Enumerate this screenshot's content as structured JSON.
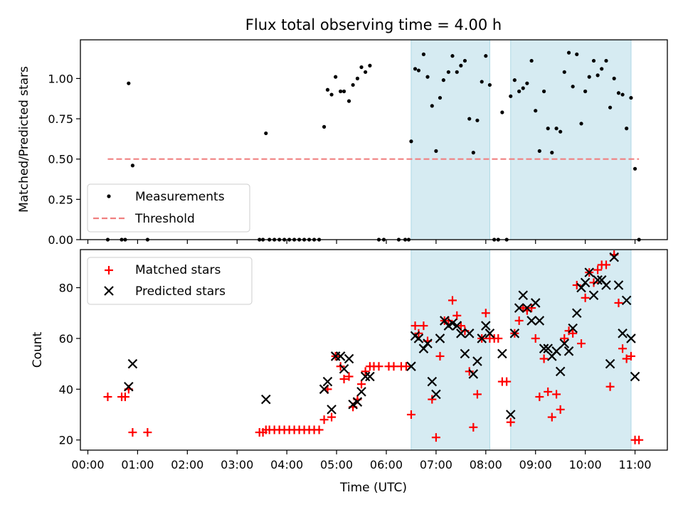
{
  "chart_data": [
    {
      "type": "scatter",
      "title": "Flux total observing time = 4.00 h",
      "xlabel": "",
      "ylabel": "Matched/Predicted stars",
      "xlim": [
        -0.15,
        11.65
      ],
      "ylim": [
        0,
        1.24
      ],
      "yticks": [
        0.0,
        0.25,
        0.5,
        0.75,
        1.0
      ],
      "ytick_labels": [
        "0.00",
        "0.25",
        "0.50",
        "0.75",
        "1.00"
      ],
      "shaded_intervals": [
        [
          6.5,
          8.08
        ],
        [
          8.5,
          10.92
        ]
      ],
      "legend_position": "lower-left",
      "series": [
        {
          "name": "Measurements",
          "marker": "dot",
          "color": "#000000",
          "points": [
            [
              0.4,
              0.0
            ],
            [
              0.68,
              0.0
            ],
            [
              0.75,
              0.0
            ],
            [
              0.82,
              0.97
            ],
            [
              0.9,
              0.46
            ],
            [
              1.2,
              0.0
            ],
            [
              3.45,
              0.0
            ],
            [
              3.52,
              0.0
            ],
            [
              3.58,
              0.66
            ],
            [
              3.65,
              0.0
            ],
            [
              3.75,
              0.0
            ],
            [
              3.85,
              0.0
            ],
            [
              3.95,
              0.0
            ],
            [
              4.05,
              0.0
            ],
            [
              4.15,
              0.0
            ],
            [
              4.25,
              0.0
            ],
            [
              4.35,
              0.0
            ],
            [
              4.45,
              0.0
            ],
            [
              4.55,
              0.0
            ],
            [
              4.65,
              0.0
            ],
            [
              4.75,
              0.7
            ],
            [
              4.82,
              0.93
            ],
            [
              4.9,
              0.9
            ],
            [
              4.98,
              1.01
            ],
            [
              5.08,
              0.92
            ],
            [
              5.15,
              0.92
            ],
            [
              5.25,
              0.86
            ],
            [
              5.33,
              0.96
            ],
            [
              5.42,
              1.0
            ],
            [
              5.5,
              1.07
            ],
            [
              5.58,
              1.04
            ],
            [
              5.67,
              1.08
            ],
            [
              5.85,
              0.0
            ],
            [
              5.95,
              0.0
            ],
            [
              6.25,
              0.0
            ],
            [
              6.38,
              0.0
            ],
            [
              6.45,
              0.0
            ],
            [
              6.5,
              0.61
            ],
            [
              6.58,
              1.06
            ],
            [
              6.65,
              1.05
            ],
            [
              6.75,
              1.15
            ],
            [
              6.83,
              1.01
            ],
            [
              6.92,
              0.83
            ],
            [
              7.0,
              0.55
            ],
            [
              7.08,
              0.88
            ],
            [
              7.15,
              0.99
            ],
            [
              7.25,
              1.04
            ],
            [
              7.33,
              1.14
            ],
            [
              7.42,
              1.04
            ],
            [
              7.5,
              1.08
            ],
            [
              7.58,
              1.11
            ],
            [
              7.67,
              0.75
            ],
            [
              7.75,
              0.54
            ],
            [
              7.83,
              0.74
            ],
            [
              7.92,
              0.98
            ],
            [
              8.0,
              1.14
            ],
            [
              8.08,
              0.96
            ],
            [
              8.17,
              0.0
            ],
            [
              8.25,
              0.0
            ],
            [
              8.33,
              0.79
            ],
            [
              8.42,
              0.0
            ],
            [
              8.5,
              0.89
            ],
            [
              8.58,
              0.99
            ],
            [
              8.67,
              0.92
            ],
            [
              8.75,
              0.94
            ],
            [
              8.83,
              0.97
            ],
            [
              8.92,
              1.11
            ],
            [
              9.0,
              0.8
            ],
            [
              9.08,
              0.55
            ],
            [
              9.17,
              0.92
            ],
            [
              9.25,
              0.69
            ],
            [
              9.33,
              0.54
            ],
            [
              9.42,
              0.69
            ],
            [
              9.5,
              0.67
            ],
            [
              9.58,
              1.04
            ],
            [
              9.67,
              1.16
            ],
            [
              9.75,
              0.95
            ],
            [
              9.83,
              1.15
            ],
            [
              9.92,
              0.72
            ],
            [
              10.0,
              0.92
            ],
            [
              10.08,
              1.01
            ],
            [
              10.17,
              1.11
            ],
            [
              10.25,
              1.02
            ],
            [
              10.33,
              1.06
            ],
            [
              10.42,
              1.11
            ],
            [
              10.5,
              0.82
            ],
            [
              10.58,
              1.0
            ],
            [
              10.67,
              0.91
            ],
            [
              10.75,
              0.9
            ],
            [
              10.83,
              0.69
            ],
            [
              10.92,
              0.88
            ],
            [
              11.0,
              0.44
            ],
            [
              11.08,
              0.0
            ]
          ]
        },
        {
          "name": "Threshold",
          "style": "dashed-line",
          "color": "#f08080",
          "points": [
            [
              0.4,
              0.5
            ],
            [
              11.08,
              0.5
            ]
          ]
        }
      ]
    },
    {
      "type": "scatter",
      "title": "",
      "xlabel": "Time (UTC)",
      "ylabel": "Count",
      "xlim": [
        -0.15,
        11.65
      ],
      "ylim": [
        16,
        95
      ],
      "xticks": [
        0,
        1,
        2,
        3,
        4,
        5,
        6,
        7,
        8,
        9,
        10,
        11
      ],
      "xtick_labels": [
        "00:00",
        "01:00",
        "02:00",
        "03:00",
        "04:00",
        "05:00",
        "06:00",
        "07:00",
        "08:00",
        "09:00",
        "10:00",
        "11:00"
      ],
      "yticks": [
        20,
        40,
        60,
        80
      ],
      "ytick_labels": [
        "20",
        "40",
        "60",
        "80"
      ],
      "shaded_intervals": [
        [
          6.5,
          8.08
        ],
        [
          8.5,
          10.92
        ]
      ],
      "legend_position": "upper-left",
      "series": [
        {
          "name": "Matched stars",
          "marker": "plus",
          "color": "#ff0000",
          "points": [
            [
              0.4,
              37
            ],
            [
              0.68,
              37
            ],
            [
              0.75,
              37
            ],
            [
              0.82,
              40
            ],
            [
              0.9,
              23
            ],
            [
              1.2,
              23
            ],
            [
              3.45,
              23
            ],
            [
              3.52,
              23
            ],
            [
              3.58,
              24
            ],
            [
              3.65,
              24
            ],
            [
              3.75,
              24
            ],
            [
              3.85,
              24
            ],
            [
              3.95,
              24
            ],
            [
              4.05,
              24
            ],
            [
              4.15,
              24
            ],
            [
              4.25,
              24
            ],
            [
              4.35,
              24
            ],
            [
              4.45,
              24
            ],
            [
              4.55,
              24
            ],
            [
              4.65,
              24
            ],
            [
              4.75,
              28
            ],
            [
              4.82,
              40
            ],
            [
              4.9,
              29
            ],
            [
              4.98,
              53
            ],
            [
              5.08,
              49
            ],
            [
              5.15,
              44
            ],
            [
              5.25,
              45
            ],
            [
              5.33,
              33
            ],
            [
              5.42,
              36
            ],
            [
              5.5,
              42
            ],
            [
              5.58,
              47
            ],
            [
              5.67,
              49
            ],
            [
              5.75,
              49
            ],
            [
              5.85,
              49
            ],
            [
              6.05,
              49
            ],
            [
              6.15,
              49
            ],
            [
              6.3,
              49
            ],
            [
              6.4,
              49
            ],
            [
              6.5,
              30
            ],
            [
              6.58,
              65
            ],
            [
              6.65,
              62
            ],
            [
              6.75,
              65
            ],
            [
              6.83,
              59
            ],
            [
              6.92,
              36
            ],
            [
              7.0,
              21
            ],
            [
              7.08,
              53
            ],
            [
              7.17,
              67
            ],
            [
              7.25,
              67
            ],
            [
              7.33,
              75
            ],
            [
              7.42,
              69
            ],
            [
              7.5,
              65
            ],
            [
              7.58,
              63
            ],
            [
              7.67,
              47
            ],
            [
              7.75,
              25
            ],
            [
              7.83,
              38
            ],
            [
              7.92,
              60
            ],
            [
              8.0,
              70
            ],
            [
              8.08,
              60
            ],
            [
              8.17,
              60
            ],
            [
              8.25,
              60
            ],
            [
              8.33,
              43
            ],
            [
              8.42,
              43
            ],
            [
              8.5,
              27
            ],
            [
              8.58,
              62
            ],
            [
              8.67,
              67
            ],
            [
              8.75,
              72
            ],
            [
              8.83,
              71
            ],
            [
              8.92,
              72
            ],
            [
              9.0,
              60
            ],
            [
              9.08,
              37
            ],
            [
              9.17,
              52
            ],
            [
              9.25,
              39
            ],
            [
              9.33,
              29
            ],
            [
              9.42,
              38
            ],
            [
              9.5,
              32
            ],
            [
              9.58,
              60
            ],
            [
              9.67,
              63
            ],
            [
              9.75,
              62
            ],
            [
              9.83,
              81
            ],
            [
              9.92,
              58
            ],
            [
              10.0,
              76
            ],
            [
              10.08,
              86
            ],
            [
              10.17,
              82
            ],
            [
              10.25,
              87
            ],
            [
              10.33,
              89
            ],
            [
              10.42,
              89
            ],
            [
              10.5,
              41
            ],
            [
              10.58,
              93
            ],
            [
              10.67,
              74
            ],
            [
              10.75,
              56
            ],
            [
              10.83,
              52
            ],
            [
              10.92,
              53
            ],
            [
              11.0,
              20
            ],
            [
              11.08,
              20
            ]
          ]
        },
        {
          "name": "Predicted stars",
          "marker": "x",
          "color": "#000000",
          "points": [
            [
              0.82,
              41
            ],
            [
              0.9,
              50
            ],
            [
              3.58,
              36
            ],
            [
              4.75,
              40
            ],
            [
              4.82,
              43
            ],
            [
              4.9,
              32
            ],
            [
              4.98,
              53
            ],
            [
              5.08,
              53
            ],
            [
              5.15,
              48
            ],
            [
              5.25,
              52
            ],
            [
              5.33,
              34
            ],
            [
              5.42,
              35
            ],
            [
              5.5,
              39
            ],
            [
              5.58,
              45
            ],
            [
              5.67,
              45
            ],
            [
              6.5,
              49
            ],
            [
              6.58,
              61
            ],
            [
              6.65,
              60
            ],
            [
              6.75,
              56
            ],
            [
              6.83,
              58
            ],
            [
              6.92,
              43
            ],
            [
              7.0,
              38
            ],
            [
              7.08,
              60
            ],
            [
              7.17,
              67
            ],
            [
              7.25,
              65
            ],
            [
              7.33,
              66
            ],
            [
              7.42,
              65
            ],
            [
              7.5,
              62
            ],
            [
              7.58,
              54
            ],
            [
              7.67,
              62
            ],
            [
              7.75,
              46
            ],
            [
              7.83,
              51
            ],
            [
              7.92,
              60
            ],
            [
              8.0,
              65
            ],
            [
              8.08,
              62
            ],
            [
              8.33,
              54
            ],
            [
              8.5,
              30
            ],
            [
              8.58,
              62
            ],
            [
              8.67,
              72
            ],
            [
              8.75,
              77
            ],
            [
              8.83,
              72
            ],
            [
              8.92,
              67
            ],
            [
              9.0,
              74
            ],
            [
              9.08,
              67
            ],
            [
              9.17,
              56
            ],
            [
              9.25,
              56
            ],
            [
              9.33,
              53
            ],
            [
              9.42,
              55
            ],
            [
              9.5,
              47
            ],
            [
              9.58,
              58
            ],
            [
              9.67,
              55
            ],
            [
              9.75,
              64
            ],
            [
              9.83,
              70
            ],
            [
              9.92,
              80
            ],
            [
              10.0,
              82
            ],
            [
              10.08,
              86
            ],
            [
              10.17,
              77
            ],
            [
              10.25,
              83
            ],
            [
              10.33,
              83
            ],
            [
              10.42,
              81
            ],
            [
              10.5,
              50
            ],
            [
              10.58,
              92
            ],
            [
              10.67,
              81
            ],
            [
              10.75,
              62
            ],
            [
              10.83,
              75
            ],
            [
              10.92,
              60
            ],
            [
              11.0,
              45
            ]
          ]
        }
      ]
    }
  ]
}
